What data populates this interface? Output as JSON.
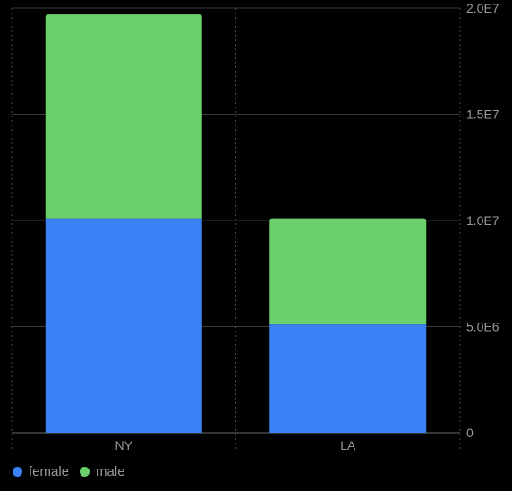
{
  "chart_data": {
    "type": "bar",
    "stacked": true,
    "categories": [
      "NY",
      "LA"
    ],
    "series": [
      {
        "name": "female",
        "values": [
          10100000,
          5100000
        ],
        "color": "#3b82f6"
      },
      {
        "name": "male",
        "values": [
          9600000,
          5000000
        ],
        "color": "#6bcf6b"
      }
    ],
    "ylim": [
      0,
      20000000
    ],
    "yticks": [
      0,
      5000000,
      10000000,
      15000000,
      20000000
    ],
    "ytick_labels": [
      "0",
      "5.0E6",
      "1.0E7",
      "1.5E7",
      "2.0E7"
    ],
    "yaxis_position": "right",
    "grid": true,
    "legend_position": "bottom-left",
    "title": "",
    "xlabel": "",
    "ylabel": ""
  }
}
